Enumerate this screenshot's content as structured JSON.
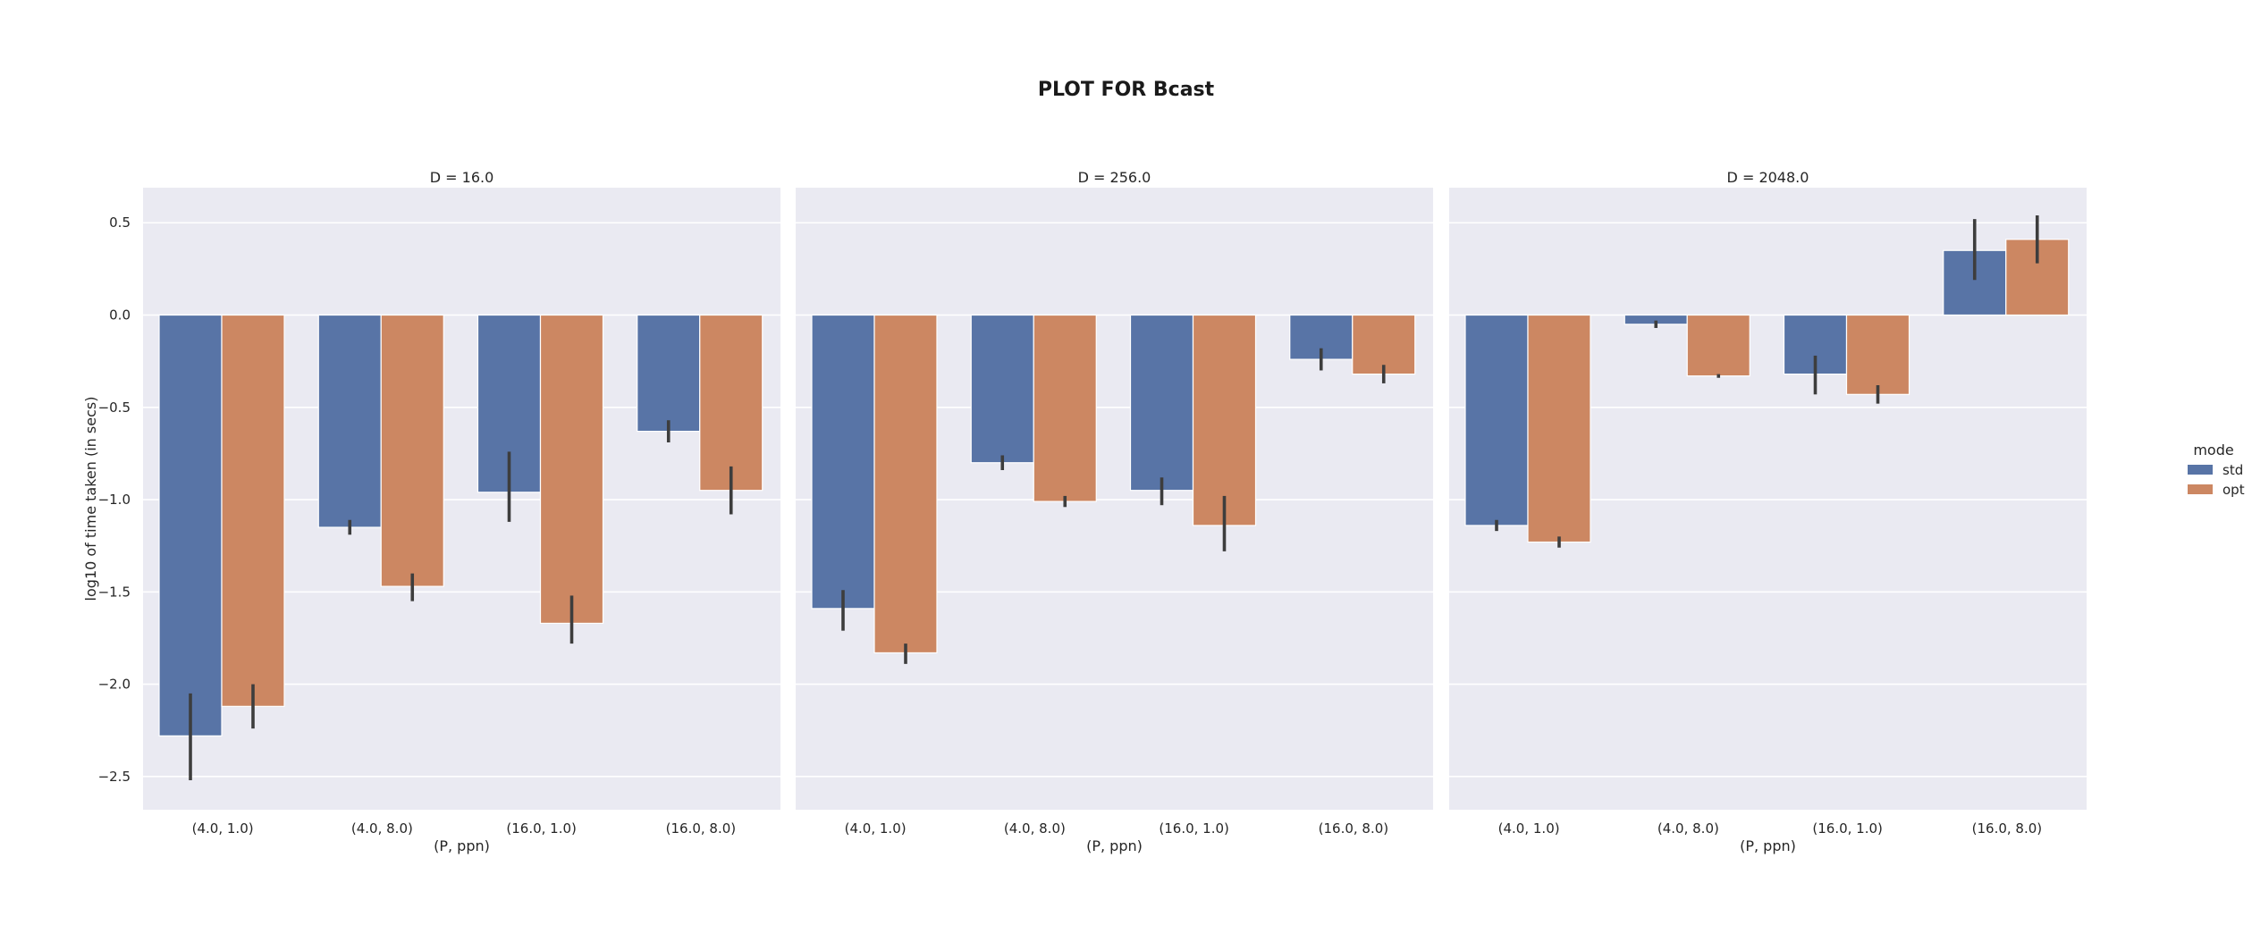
{
  "chart_data": {
    "type": "bar",
    "title": "PLOT FOR Bcast",
    "ylabel": "log10 of time taken (in secs)",
    "xlabel": "(P, ppn)",
    "ylim": [
      -2.68,
      0.69
    ],
    "yticks": [
      0.5,
      0.0,
      -0.5,
      -1.0,
      -1.5,
      -2.0,
      -2.5
    ],
    "ytick_labels": [
      "0.5",
      "0.0",
      "−0.5",
      "−1.0",
      "−1.5",
      "−2.0",
      "−2.5"
    ],
    "categories": [
      "(4.0, 1.0)",
      "(4.0, 8.0)",
      "(16.0, 1.0)",
      "(16.0, 8.0)"
    ],
    "grid": true,
    "legend": {
      "title": "mode",
      "placement": "right",
      "entries": [
        {
          "name": "std",
          "color": "#5874a6"
        },
        {
          "name": "opt",
          "color": "#cc8762"
        }
      ]
    },
    "facets": [
      {
        "title": "D = 16.0",
        "series": [
          {
            "name": "std",
            "values": [
              -2.28,
              -1.15,
              -0.96,
              -0.63
            ],
            "err_low": [
              -2.52,
              -1.19,
              -1.12,
              -0.69
            ],
            "err_high": [
              -2.05,
              -1.11,
              -0.74,
              -0.57
            ]
          },
          {
            "name": "opt",
            "values": [
              -2.12,
              -1.47,
              -1.67,
              -0.95
            ],
            "err_low": [
              -2.24,
              -1.55,
              -1.78,
              -1.08
            ],
            "err_high": [
              -2.0,
              -1.4,
              -1.52,
              -0.82
            ]
          }
        ]
      },
      {
        "title": "D = 256.0",
        "series": [
          {
            "name": "std",
            "values": [
              -1.59,
              -0.8,
              -0.95,
              -0.24
            ],
            "err_low": [
              -1.71,
              -0.84,
              -1.03,
              -0.3
            ],
            "err_high": [
              -1.49,
              -0.76,
              -0.88,
              -0.18
            ]
          },
          {
            "name": "opt",
            "values": [
              -1.83,
              -1.01,
              -1.14,
              -0.32
            ],
            "err_low": [
              -1.89,
              -1.04,
              -1.28,
              -0.37
            ],
            "err_high": [
              -1.78,
              -0.98,
              -0.98,
              -0.27
            ]
          }
        ]
      },
      {
        "title": "D = 2048.0",
        "series": [
          {
            "name": "std",
            "values": [
              -1.14,
              -0.05,
              -0.32,
              0.35
            ],
            "err_low": [
              -1.17,
              -0.07,
              -0.43,
              0.19
            ],
            "err_high": [
              -1.11,
              -0.03,
              -0.22,
              0.52
            ]
          },
          {
            "name": "opt",
            "values": [
              -1.23,
              -0.33,
              -0.43,
              0.41
            ],
            "err_low": [
              -1.26,
              -0.34,
              -0.48,
              0.28
            ],
            "err_high": [
              -1.2,
              -0.32,
              -0.38,
              0.54
            ]
          }
        ]
      }
    ]
  }
}
